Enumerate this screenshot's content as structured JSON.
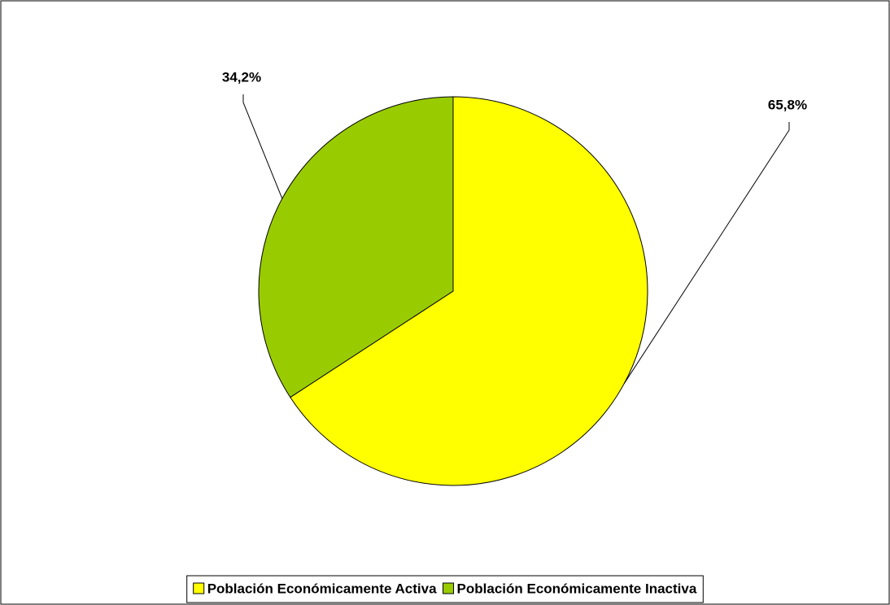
{
  "chart_data": {
    "type": "pie",
    "categories": [
      "Población Económicamente Activa",
      "Población Económicamente Inactiva"
    ],
    "values": [
      65.8,
      34.2
    ],
    "value_labels": [
      "65,8%",
      "34,2%"
    ],
    "colors": [
      "#ffff00",
      "#99cc00"
    ],
    "legend": "bottom"
  }
}
